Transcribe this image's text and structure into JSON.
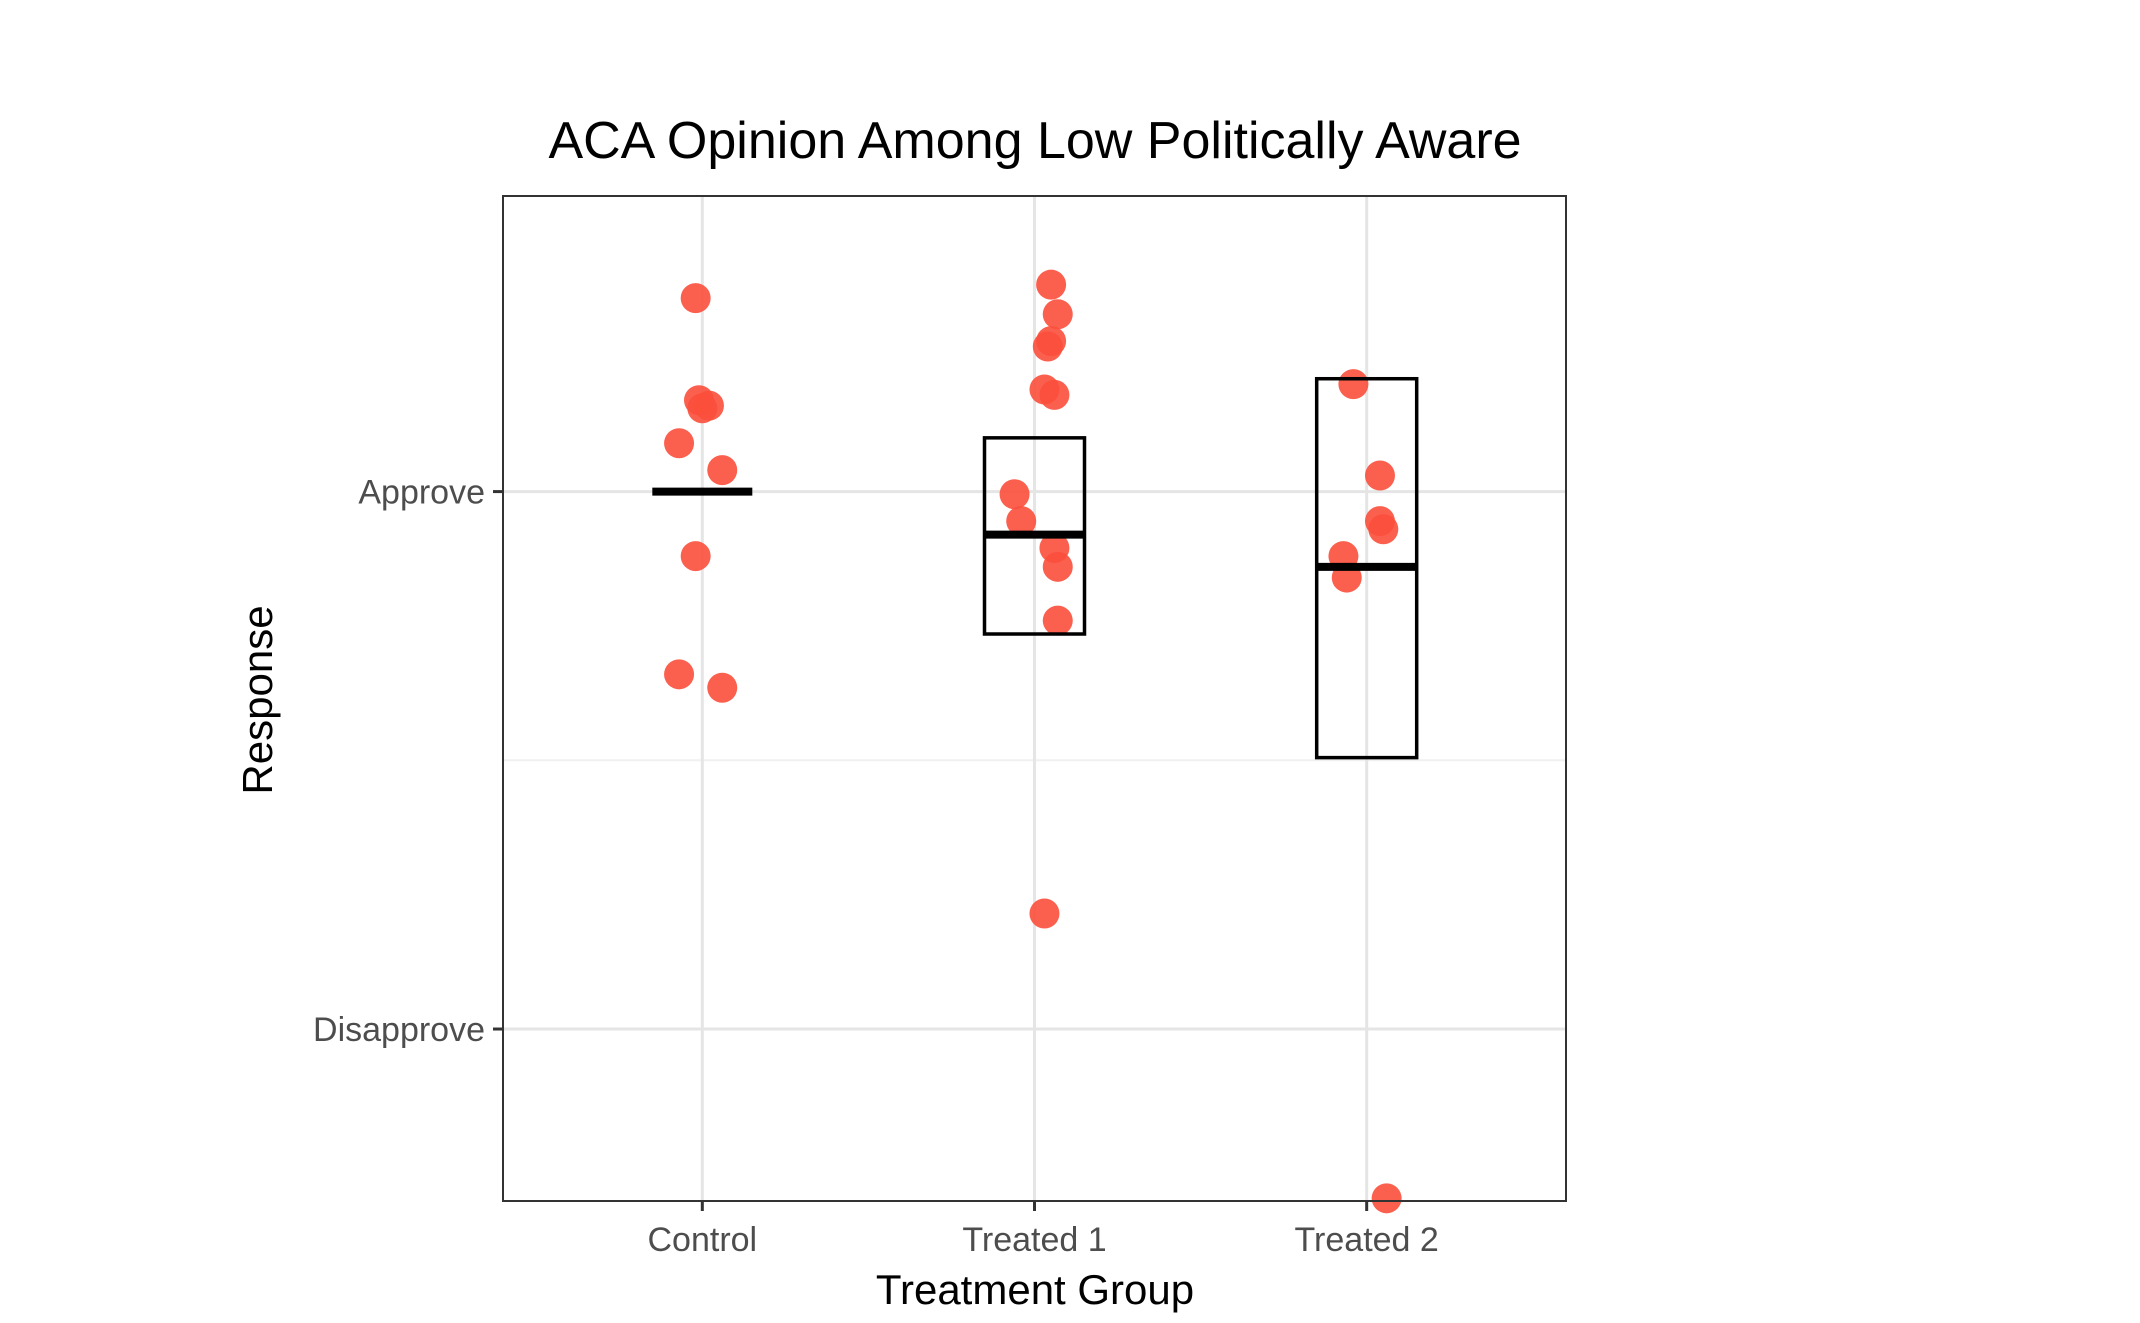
{
  "chart_data": {
    "type": "scatter",
    "title": "ACA Opinion Among Low Politically Aware",
    "xlabel": "Treatment Group",
    "ylabel": "Response",
    "categories": [
      "Control",
      "Treated 1",
      "Treated 2"
    ],
    "y_ticks": [
      {
        "value": 0,
        "label": "Disapprove"
      },
      {
        "value": 1,
        "label": "Approve"
      }
    ],
    "ylim": [
      -0.32,
      1.55
    ],
    "grid": true,
    "legend": "none",
    "point_color": "#fb4f3c",
    "points": [
      {
        "group": "Control",
        "x": 0.98,
        "y": 1.36
      },
      {
        "group": "Control",
        "x": 0.99,
        "y": 1.17
      },
      {
        "group": "Control",
        "x": 1.02,
        "y": 1.16
      },
      {
        "group": "Control",
        "x": 1.0,
        "y": 1.155
      },
      {
        "group": "Control",
        "x": 0.93,
        "y": 1.09
      },
      {
        "group": "Control",
        "x": 1.06,
        "y": 1.04
      },
      {
        "group": "Control",
        "x": 0.98,
        "y": 0.88
      },
      {
        "group": "Control",
        "x": 0.93,
        "y": 0.66
      },
      {
        "group": "Control",
        "x": 1.06,
        "y": 0.635
      },
      {
        "group": "Treated 1",
        "x": 2.05,
        "y": 1.385
      },
      {
        "group": "Treated 1",
        "x": 2.07,
        "y": 1.33
      },
      {
        "group": "Treated 1",
        "x": 2.05,
        "y": 1.28
      },
      {
        "group": "Treated 1",
        "x": 2.04,
        "y": 1.27
      },
      {
        "group": "Treated 1",
        "x": 2.03,
        "y": 1.19
      },
      {
        "group": "Treated 1",
        "x": 2.06,
        "y": 1.18
      },
      {
        "group": "Treated 1",
        "x": 1.94,
        "y": 0.995
      },
      {
        "group": "Treated 1",
        "x": 1.96,
        "y": 0.945
      },
      {
        "group": "Treated 1",
        "x": 2.06,
        "y": 0.895
      },
      {
        "group": "Treated 1",
        "x": 2.07,
        "y": 0.86
      },
      {
        "group": "Treated 1",
        "x": 2.07,
        "y": 0.76
      },
      {
        "group": "Treated 1",
        "x": 2.03,
        "y": 0.215
      },
      {
        "group": "Treated 2",
        "x": 2.96,
        "y": 1.2
      },
      {
        "group": "Treated 2",
        "x": 3.04,
        "y": 1.03
      },
      {
        "group": "Treated 2",
        "x": 3.04,
        "y": 0.945
      },
      {
        "group": "Treated 2",
        "x": 3.05,
        "y": 0.93
      },
      {
        "group": "Treated 2",
        "x": 2.93,
        "y": 0.88
      },
      {
        "group": "Treated 2",
        "x": 2.94,
        "y": 0.84
      },
      {
        "group": "Treated 2",
        "x": 3.06,
        "y": -0.315
      }
    ],
    "summary_boxes": [
      {
        "group": "Control",
        "mean": 1.0,
        "lower": 1.0,
        "upper": 1.0
      },
      {
        "group": "Treated 1",
        "mean": 0.92,
        "lower": 0.735,
        "upper": 1.1
      },
      {
        "group": "Treated 2",
        "mean": 0.86,
        "lower": 0.505,
        "upper": 1.21
      }
    ]
  }
}
